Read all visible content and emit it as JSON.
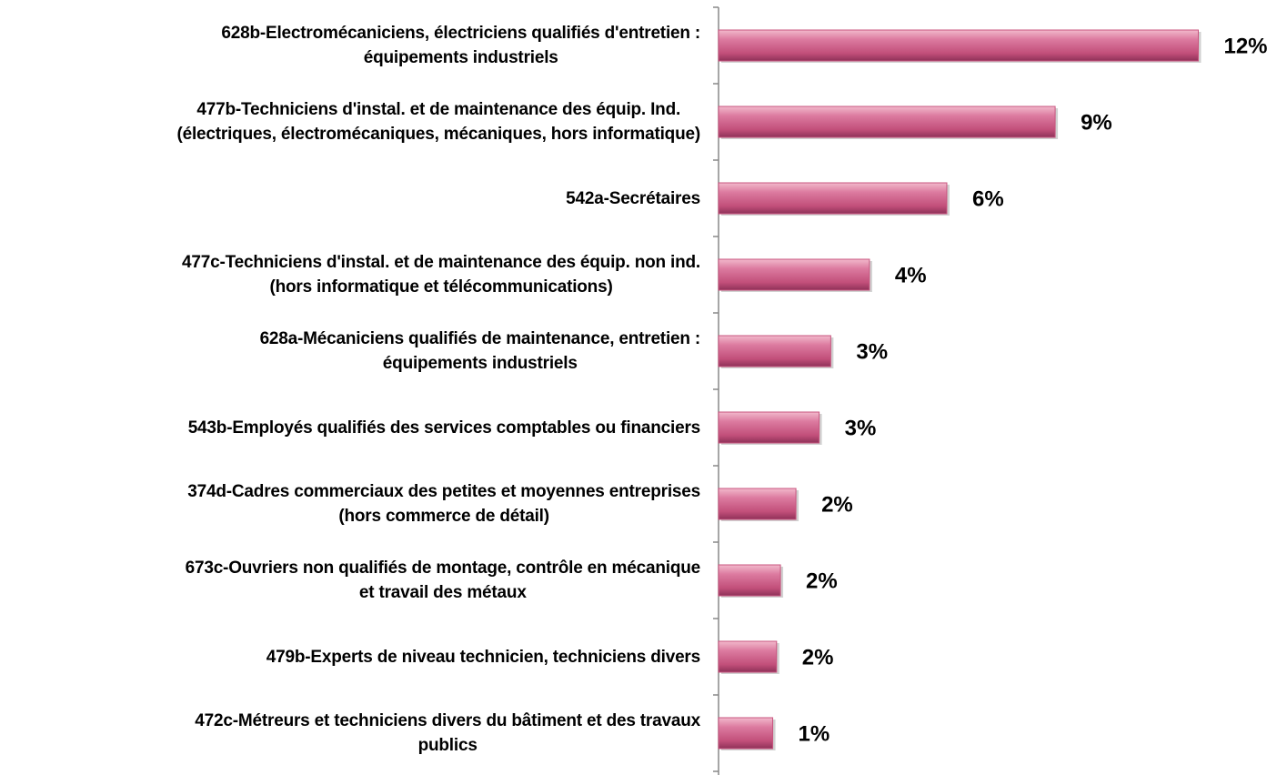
{
  "chart_data": {
    "type": "barh",
    "categories": [
      "628b-Electromécaniciens, électriciens qualifiés d'entretien :\néquipements industriels",
      "477b-Techniciens d'instal. et de maintenance des équip. Ind.\n(électriques, électromécaniques, mécaniques, hors informatique)",
      "542a-Secrétaires",
      "477c-Techniciens d'instal. et de maintenance des équip. non ind.\n(hors informatique et télécommunications)",
      "628a-Mécaniciens qualifiés de maintenance, entretien :\néquipements industriels",
      "543b-Employés qualifiés des services comptables ou financiers",
      "374d-Cadres commerciaux des petites et moyennes entreprises\n(hors commerce de détail)",
      "673c-Ouvriers non qualifiés de montage, contrôle en mécanique\net travail des métaux",
      "479b-Experts de niveau technicien, techniciens divers",
      "472c-Métreurs et techniciens divers du bâtiment et des travaux\npublics"
    ],
    "values": [
      12.4,
      8.7,
      5.9,
      3.9,
      2.9,
      2.6,
      2.0,
      1.6,
      1.5,
      1.4
    ],
    "value_labels": [
      "12%",
      "9%",
      "6%",
      "4%",
      "3%",
      "3%",
      "2%",
      "2%",
      "2%",
      "1%"
    ],
    "color": "#c8557f",
    "xlim": [
      0,
      13
    ]
  }
}
